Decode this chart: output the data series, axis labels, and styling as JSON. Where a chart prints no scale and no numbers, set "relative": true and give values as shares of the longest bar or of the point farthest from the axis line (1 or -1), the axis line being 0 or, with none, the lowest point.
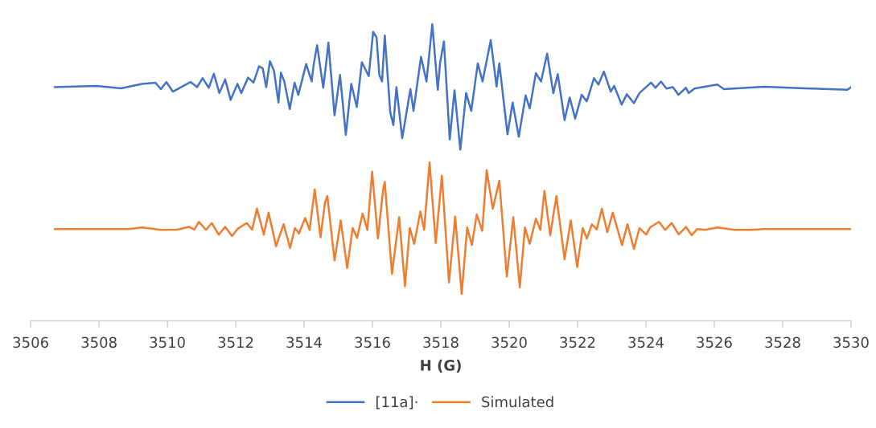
{
  "chart_data": {
    "type": "line",
    "xlabel": "H (G)",
    "relative": true,
    "xlim": [
      3506,
      3530
    ],
    "xticks": [
      3506,
      3508,
      3510,
      3512,
      3514,
      3516,
      3518,
      3520,
      3522,
      3524,
      3526,
      3528,
      3530
    ],
    "grid": false,
    "legend": "bottom",
    "marker": "none",
    "line_style": "solid",
    "series": [
      {
        "name": "[11a]·",
        "color": "#4472c4",
        "x": [
          3506.71,
          3507.93,
          3508.64,
          3509.26,
          3509.65,
          3509.81,
          3509.97,
          3510.16,
          3510.68,
          3510.87,
          3511.03,
          3511.21,
          3511.36,
          3511.52,
          3511.69,
          3511.85,
          3512.05,
          3512.16,
          3512.36,
          3512.52,
          3512.68,
          3512.79,
          3512.89,
          3513.0,
          3513.12,
          3513.25,
          3513.32,
          3513.42,
          3513.58,
          3513.72,
          3513.83,
          3514.06,
          3514.22,
          3514.28,
          3514.38,
          3514.56,
          3514.64,
          3514.71,
          3514.89,
          3515.05,
          3515.22,
          3515.38,
          3515.54,
          3515.69,
          3515.89,
          3516.02,
          3516.12,
          3516.2,
          3516.28,
          3516.36,
          3516.52,
          3516.61,
          3516.7,
          3516.87,
          3517.11,
          3517.2,
          3517.42,
          3517.58,
          3517.75,
          3517.91,
          3517.98,
          3518.09,
          3518.26,
          3518.4,
          3518.57,
          3518.74,
          3518.89,
          3519.08,
          3519.22,
          3519.46,
          3519.63,
          3519.71,
          3519.95,
          3520.1,
          3520.28,
          3520.48,
          3520.6,
          3520.78,
          3520.93,
          3521.11,
          3521.29,
          3521.42,
          3521.62,
          3521.77,
          3521.93,
          3522.12,
          3522.27,
          3522.48,
          3522.61,
          3522.77,
          3522.97,
          3523.07,
          3523.29,
          3523.44,
          3523.65,
          3523.81,
          3524.15,
          3524.28,
          3524.44,
          3524.6,
          3524.79,
          3524.95,
          3525.17,
          3525.25,
          3525.42,
          3526.09,
          3526.28,
          3527.46,
          3528.64,
          3529.89,
          3530.0
        ],
        "values": [
          0.788,
          0.792,
          0.784,
          0.799,
          0.803,
          0.781,
          0.805,
          0.773,
          0.805,
          0.788,
          0.818,
          0.786,
          0.833,
          0.768,
          0.814,
          0.745,
          0.799,
          0.768,
          0.82,
          0.803,
          0.858,
          0.851,
          0.788,
          0.875,
          0.842,
          0.736,
          0.837,
          0.807,
          0.714,
          0.803,
          0.762,
          0.866,
          0.807,
          0.864,
          0.929,
          0.786,
          0.864,
          0.938,
          0.693,
          0.829,
          0.627,
          0.799,
          0.721,
          0.872,
          0.825,
          0.974,
          0.955,
          0.829,
          0.807,
          0.962,
          0.703,
          0.66,
          0.788,
          0.616,
          0.781,
          0.708,
          0.89,
          0.807,
          1.0,
          0.779,
          0.872,
          0.942,
          0.612,
          0.777,
          0.577,
          0.768,
          0.708,
          0.868,
          0.807,
          0.946,
          0.79,
          0.868,
          0.629,
          0.736,
          0.621,
          0.76,
          0.716,
          0.835,
          0.807,
          0.901,
          0.768,
          0.832,
          0.677,
          0.753,
          0.682,
          0.762,
          0.74,
          0.818,
          0.797,
          0.84,
          0.773,
          0.792,
          0.729,
          0.764,
          0.734,
          0.768,
          0.803,
          0.786,
          0.807,
          0.783,
          0.788,
          0.762,
          0.786,
          0.768,
          0.783,
          0.797,
          0.781,
          0.789,
          0.784,
          0.779,
          0.788
        ]
      },
      {
        "name": "Simulated",
        "color": "#ed7d31",
        "x": [
          3506.71,
          3508.87,
          3509.26,
          3509.81,
          3510.28,
          3510.64,
          3510.79,
          3510.92,
          3511.13,
          3511.3,
          3511.5,
          3511.69,
          3511.89,
          3512.05,
          3512.32,
          3512.48,
          3512.62,
          3512.82,
          3512.96,
          3513.18,
          3513.4,
          3513.59,
          3513.73,
          3513.85,
          3514.03,
          3514.16,
          3514.31,
          3514.48,
          3514.61,
          3514.68,
          3514.89,
          3515.07,
          3515.26,
          3515.42,
          3515.55,
          3515.71,
          3515.85,
          3515.99,
          3516.16,
          3516.31,
          3516.36,
          3516.57,
          3516.78,
          3516.95,
          3517.09,
          3517.22,
          3517.4,
          3517.51,
          3517.67,
          3517.85,
          3518.03,
          3518.24,
          3518.42,
          3518.61,
          3518.77,
          3518.91,
          3519.05,
          3519.21,
          3519.34,
          3519.52,
          3519.71,
          3519.93,
          3520.12,
          3520.31,
          3520.46,
          3520.6,
          3520.78,
          3520.91,
          3521.03,
          3521.2,
          3521.38,
          3521.62,
          3521.8,
          3521.99,
          3522.15,
          3522.27,
          3522.42,
          3522.56,
          3522.71,
          3522.87,
          3523.03,
          3523.3,
          3523.46,
          3523.65,
          3523.81,
          3524.01,
          3524.12,
          3524.38,
          3524.56,
          3524.75,
          3524.96,
          3525.17,
          3525.34,
          3525.5,
          3525.73,
          3526.09,
          3526.6,
          3527.07,
          3527.46,
          3530.0
        ],
        "values": [
          0.31,
          0.31,
          0.315,
          0.307,
          0.308,
          0.317,
          0.308,
          0.334,
          0.307,
          0.33,
          0.291,
          0.317,
          0.286,
          0.31,
          0.33,
          0.308,
          0.379,
          0.291,
          0.365,
          0.252,
          0.326,
          0.246,
          0.313,
          0.295,
          0.347,
          0.307,
          0.443,
          0.282,
          0.399,
          0.421,
          0.204,
          0.339,
          0.178,
          0.313,
          0.28,
          0.362,
          0.307,
          0.503,
          0.278,
          0.443,
          0.469,
          0.159,
          0.35,
          0.117,
          0.313,
          0.26,
          0.369,
          0.307,
          0.534,
          0.263,
          0.489,
          0.13,
          0.352,
          0.091,
          0.315,
          0.256,
          0.359,
          0.304,
          0.508,
          0.378,
          0.473,
          0.15,
          0.35,
          0.113,
          0.315,
          0.26,
          0.345,
          0.307,
          0.438,
          0.289,
          0.421,
          0.208,
          0.339,
          0.182,
          0.313,
          0.278,
          0.326,
          0.308,
          0.378,
          0.299,
          0.365,
          0.256,
          0.326,
          0.243,
          0.313,
          0.291,
          0.315,
          0.334,
          0.307,
          0.33,
          0.292,
          0.317,
          0.289,
          0.31,
          0.307,
          0.315,
          0.307,
          0.307,
          0.31,
          0.31
        ]
      }
    ]
  }
}
